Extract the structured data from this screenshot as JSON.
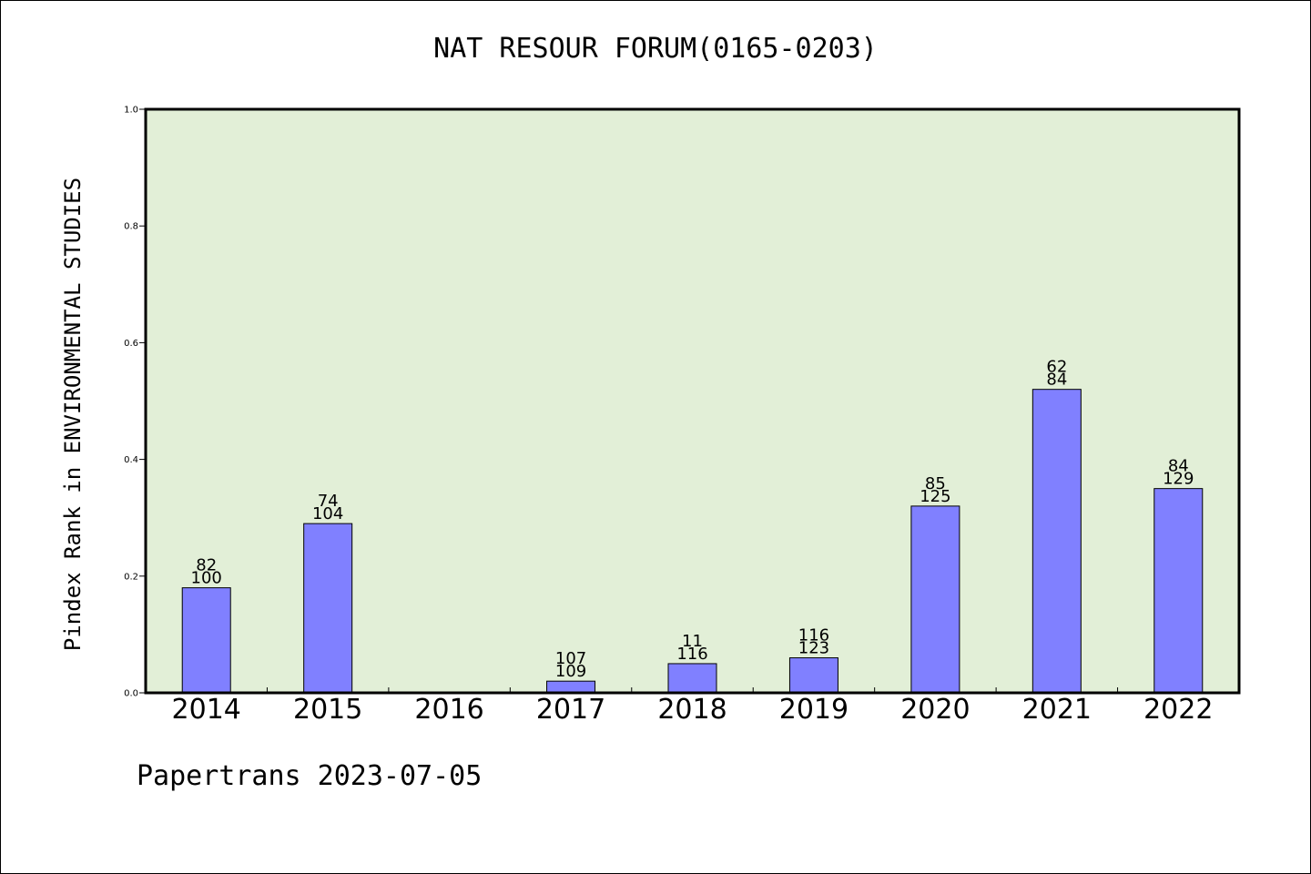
{
  "chart_data": {
    "type": "bar",
    "title": "NAT RESOUR FORUM(0165-0203)",
    "xlabel": "",
    "ylabel": "Pindex Rank in ENVIRONMENTAL STUDIES",
    "ylim": [
      0,
      1.0
    ],
    "y_ticks": [
      "0.0",
      "0.2",
      "0.4",
      "0.6",
      "0.8",
      "1.0"
    ],
    "categories": [
      "2014",
      "2015",
      "2016",
      "2017",
      "2018",
      "2019",
      "2020",
      "2021",
      "2022"
    ],
    "values": [
      0.18,
      0.29,
      0.0,
      0.02,
      0.05,
      0.06,
      0.32,
      0.52,
      0.35
    ],
    "labels_top": [
      "82",
      "74",
      "",
      "107",
      "11",
      "116",
      "85",
      "62",
      "84"
    ],
    "labels_bottom": [
      "100",
      "104",
      "",
      "109",
      "116",
      "123",
      "125",
      "84",
      "129"
    ],
    "grid": false,
    "colors": {
      "plot_bg": "#e2efd7",
      "bar": "#8080ff"
    }
  },
  "footer": "Papertrans 2023-07-05"
}
